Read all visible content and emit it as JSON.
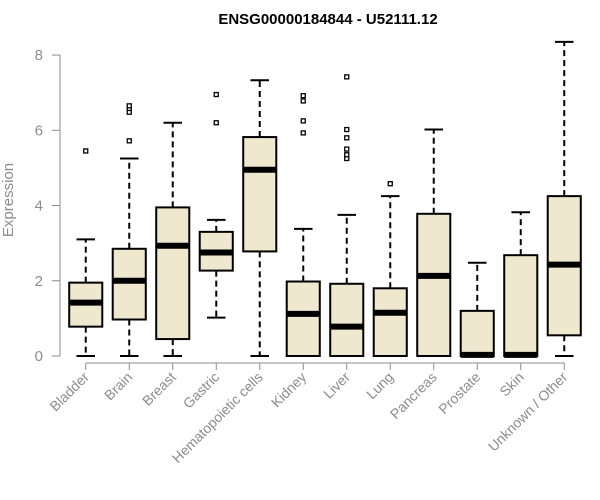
{
  "chart_data": {
    "type": "boxplot",
    "title": "ENSG00000184844 - U52111.12",
    "xlabel": "",
    "ylabel": "Expression",
    "ylim": [
      0,
      8.4
    ],
    "yticks": [
      0,
      2,
      4,
      6,
      8
    ],
    "box_fill": "#efe8cf",
    "series": [
      {
        "name": "Bladder",
        "min": 0,
        "q1": 0.78,
        "median": 1.42,
        "q3": 1.95,
        "max": 3.1,
        "outliers": [
          5.45
        ]
      },
      {
        "name": "Brain",
        "min": 0,
        "q1": 0.97,
        "median": 2.0,
        "q3": 2.85,
        "max": 5.25,
        "outliers": [
          5.72,
          6.48,
          6.58,
          6.65
        ]
      },
      {
        "name": "Breast",
        "min": 0,
        "q1": 0.45,
        "median": 2.93,
        "q3": 3.95,
        "max": 6.2,
        "outliers": []
      },
      {
        "name": "Gastric",
        "min": 1.02,
        "q1": 2.27,
        "median": 2.75,
        "q3": 3.3,
        "max": 3.62,
        "outliers": [
          6.2,
          6.95
        ]
      },
      {
        "name": "Hematopoietic cells",
        "min": 0,
        "q1": 2.78,
        "median": 4.95,
        "q3": 5.82,
        "max": 7.33,
        "outliers": []
      },
      {
        "name": "Kidney",
        "min": 0,
        "q1": 0,
        "median": 1.12,
        "q3": 1.98,
        "max": 3.38,
        "outliers": [
          5.93,
          6.25,
          6.78,
          6.92
        ]
      },
      {
        "name": "Liver",
        "min": 0,
        "q1": 0,
        "median": 0.78,
        "q3": 1.92,
        "max": 3.75,
        "outliers": [
          5.25,
          5.35,
          5.5,
          5.8,
          6.02,
          7.42
        ]
      },
      {
        "name": "Lung",
        "min": 0,
        "q1": 0,
        "median": 1.15,
        "q3": 1.8,
        "max": 4.25,
        "outliers": [
          4.58
        ]
      },
      {
        "name": "Pancreas",
        "min": 0,
        "q1": 0,
        "median": 2.13,
        "q3": 3.78,
        "max": 6.02,
        "outliers": []
      },
      {
        "name": "Prostate",
        "min": 0,
        "q1": 0,
        "median": 0.03,
        "q3": 1.2,
        "max": 2.48,
        "outliers": []
      },
      {
        "name": "Skin",
        "min": 0,
        "q1": 0,
        "median": 0.03,
        "q3": 2.68,
        "max": 3.82,
        "outliers": []
      },
      {
        "name": "Unknown / Other",
        "min": 0,
        "q1": 0.55,
        "median": 2.43,
        "q3": 4.25,
        "max": 8.35,
        "outliers": []
      }
    ]
  }
}
